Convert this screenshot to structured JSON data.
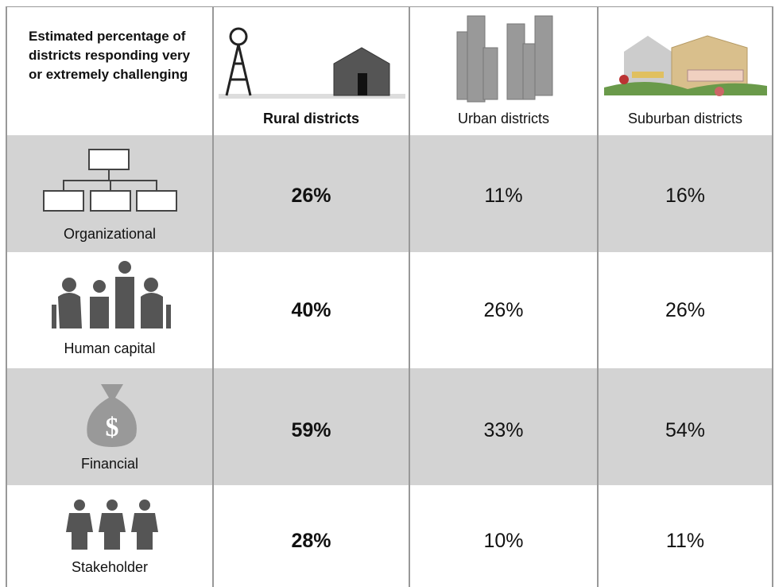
{
  "table": {
    "title": "Estimated percentage of districts responding very or extremely challenging",
    "columns": [
      "Rural districts",
      "Urban districts",
      "Suburban districts"
    ],
    "rows": [
      {
        "label": "Organizational",
        "values": [
          "26%",
          "11%",
          "16%"
        ]
      },
      {
        "label": "Human capital",
        "values": [
          "40%",
          "26%",
          "26%"
        ]
      },
      {
        "label": "Financial",
        "values": [
          "59%",
          "33%",
          "54%"
        ]
      },
      {
        "label": "Stakeholder",
        "values": [
          "28%",
          "10%",
          "11%"
        ]
      }
    ]
  }
}
